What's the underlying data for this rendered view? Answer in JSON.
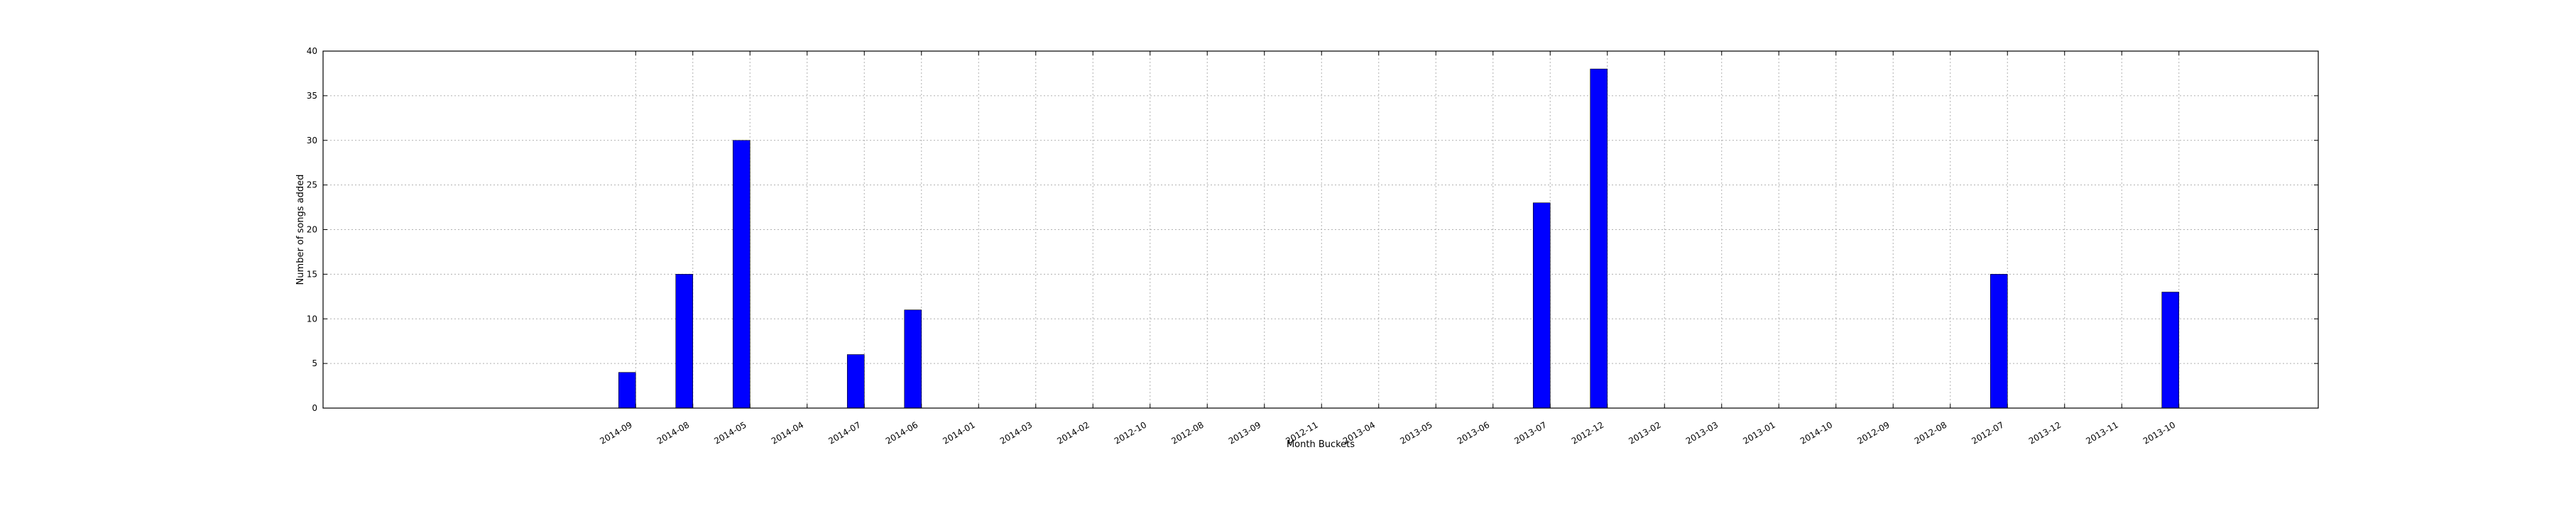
{
  "chart_data": {
    "type": "bar",
    "title": "",
    "xlabel": "Month Buckets",
    "ylabel": "Number of songs added",
    "categories": [
      "2014-09",
      "2014-08",
      "2014-05",
      "2014-04",
      "2014-07",
      "2014-06",
      "2014-01",
      "2014-03",
      "2014-02",
      "2012-10",
      "2012-08",
      "2013-09",
      "2012-11",
      "2013-04",
      "2013-05",
      "2013-06",
      "2013-07",
      "2012-12",
      "2013-02",
      "2013-03",
      "2013-01",
      "2014-10",
      "2012-09",
      "2012-08",
      "2012-07",
      "2013-12",
      "2013-11",
      "2013-10"
    ],
    "values": [
      4,
      15,
      30,
      0,
      6,
      11,
      0,
      0,
      0,
      0,
      0,
      0,
      0,
      0,
      0,
      0,
      23,
      38,
      0,
      0,
      0,
      0,
      0,
      0,
      15,
      0,
      0,
      13
    ],
    "ylim": [
      0,
      40
    ],
    "yticks": [
      0,
      5,
      10,
      15,
      20,
      25,
      30,
      35,
      40
    ],
    "grid": true,
    "bar_color": "#0000ff"
  }
}
